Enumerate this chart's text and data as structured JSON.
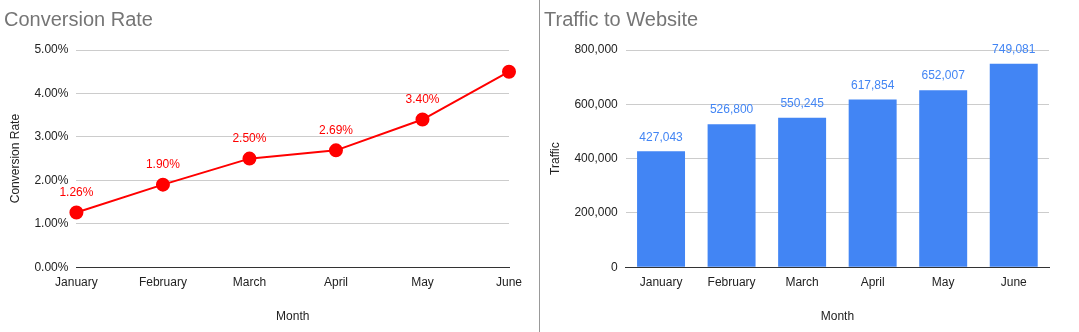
{
  "chart_data": [
    {
      "type": "line",
      "title": "Conversion Rate",
      "xlabel": "Month",
      "ylabel": "Conversion Rate",
      "categories": [
        "January",
        "February",
        "March",
        "April",
        "May",
        "June"
      ],
      "series": [
        {
          "color": "#ff0000",
          "values": [
            1.26,
            1.9,
            2.5,
            2.69,
            3.4,
            4.5
          ],
          "value_labels": [
            "1.26%",
            "1.90%",
            "2.50%",
            "2.69%",
            "3.40%",
            null
          ]
        }
      ],
      "ylim": [
        0,
        5
      ],
      "yticks": [
        {
          "value": 0,
          "label": "0.00%"
        },
        {
          "value": 1,
          "label": "1.00%"
        },
        {
          "value": 2,
          "label": "2.00%"
        },
        {
          "value": 3,
          "label": "3.00%"
        },
        {
          "value": 4,
          "label": "4.00%"
        },
        {
          "value": 5,
          "label": "5.00%"
        }
      ],
      "grid": "y",
      "legend": false,
      "marker": "circle",
      "line_style": "solid"
    },
    {
      "type": "bar",
      "title": "Traffic to Website",
      "xlabel": "Month",
      "ylabel": "Traffic",
      "categories": [
        "January",
        "February",
        "March",
        "April",
        "May",
        "June"
      ],
      "series": [
        {
          "color": "#4285f4",
          "values": [
            427043,
            526800,
            550245,
            617854,
            652007,
            749081
          ],
          "value_labels": [
            "427,043",
            "526,800",
            "550,245",
            "617,854",
            "652,007",
            "749,081"
          ]
        }
      ],
      "ylim": [
        0,
        800000
      ],
      "yticks": [
        {
          "value": 0,
          "label": "0"
        },
        {
          "value": 200000,
          "label": "200,000"
        },
        {
          "value": 400000,
          "label": "400,000"
        },
        {
          "value": 600000,
          "label": "600,000"
        },
        {
          "value": 800000,
          "label": "800,000"
        }
      ],
      "grid": "y",
      "legend": false
    }
  ]
}
